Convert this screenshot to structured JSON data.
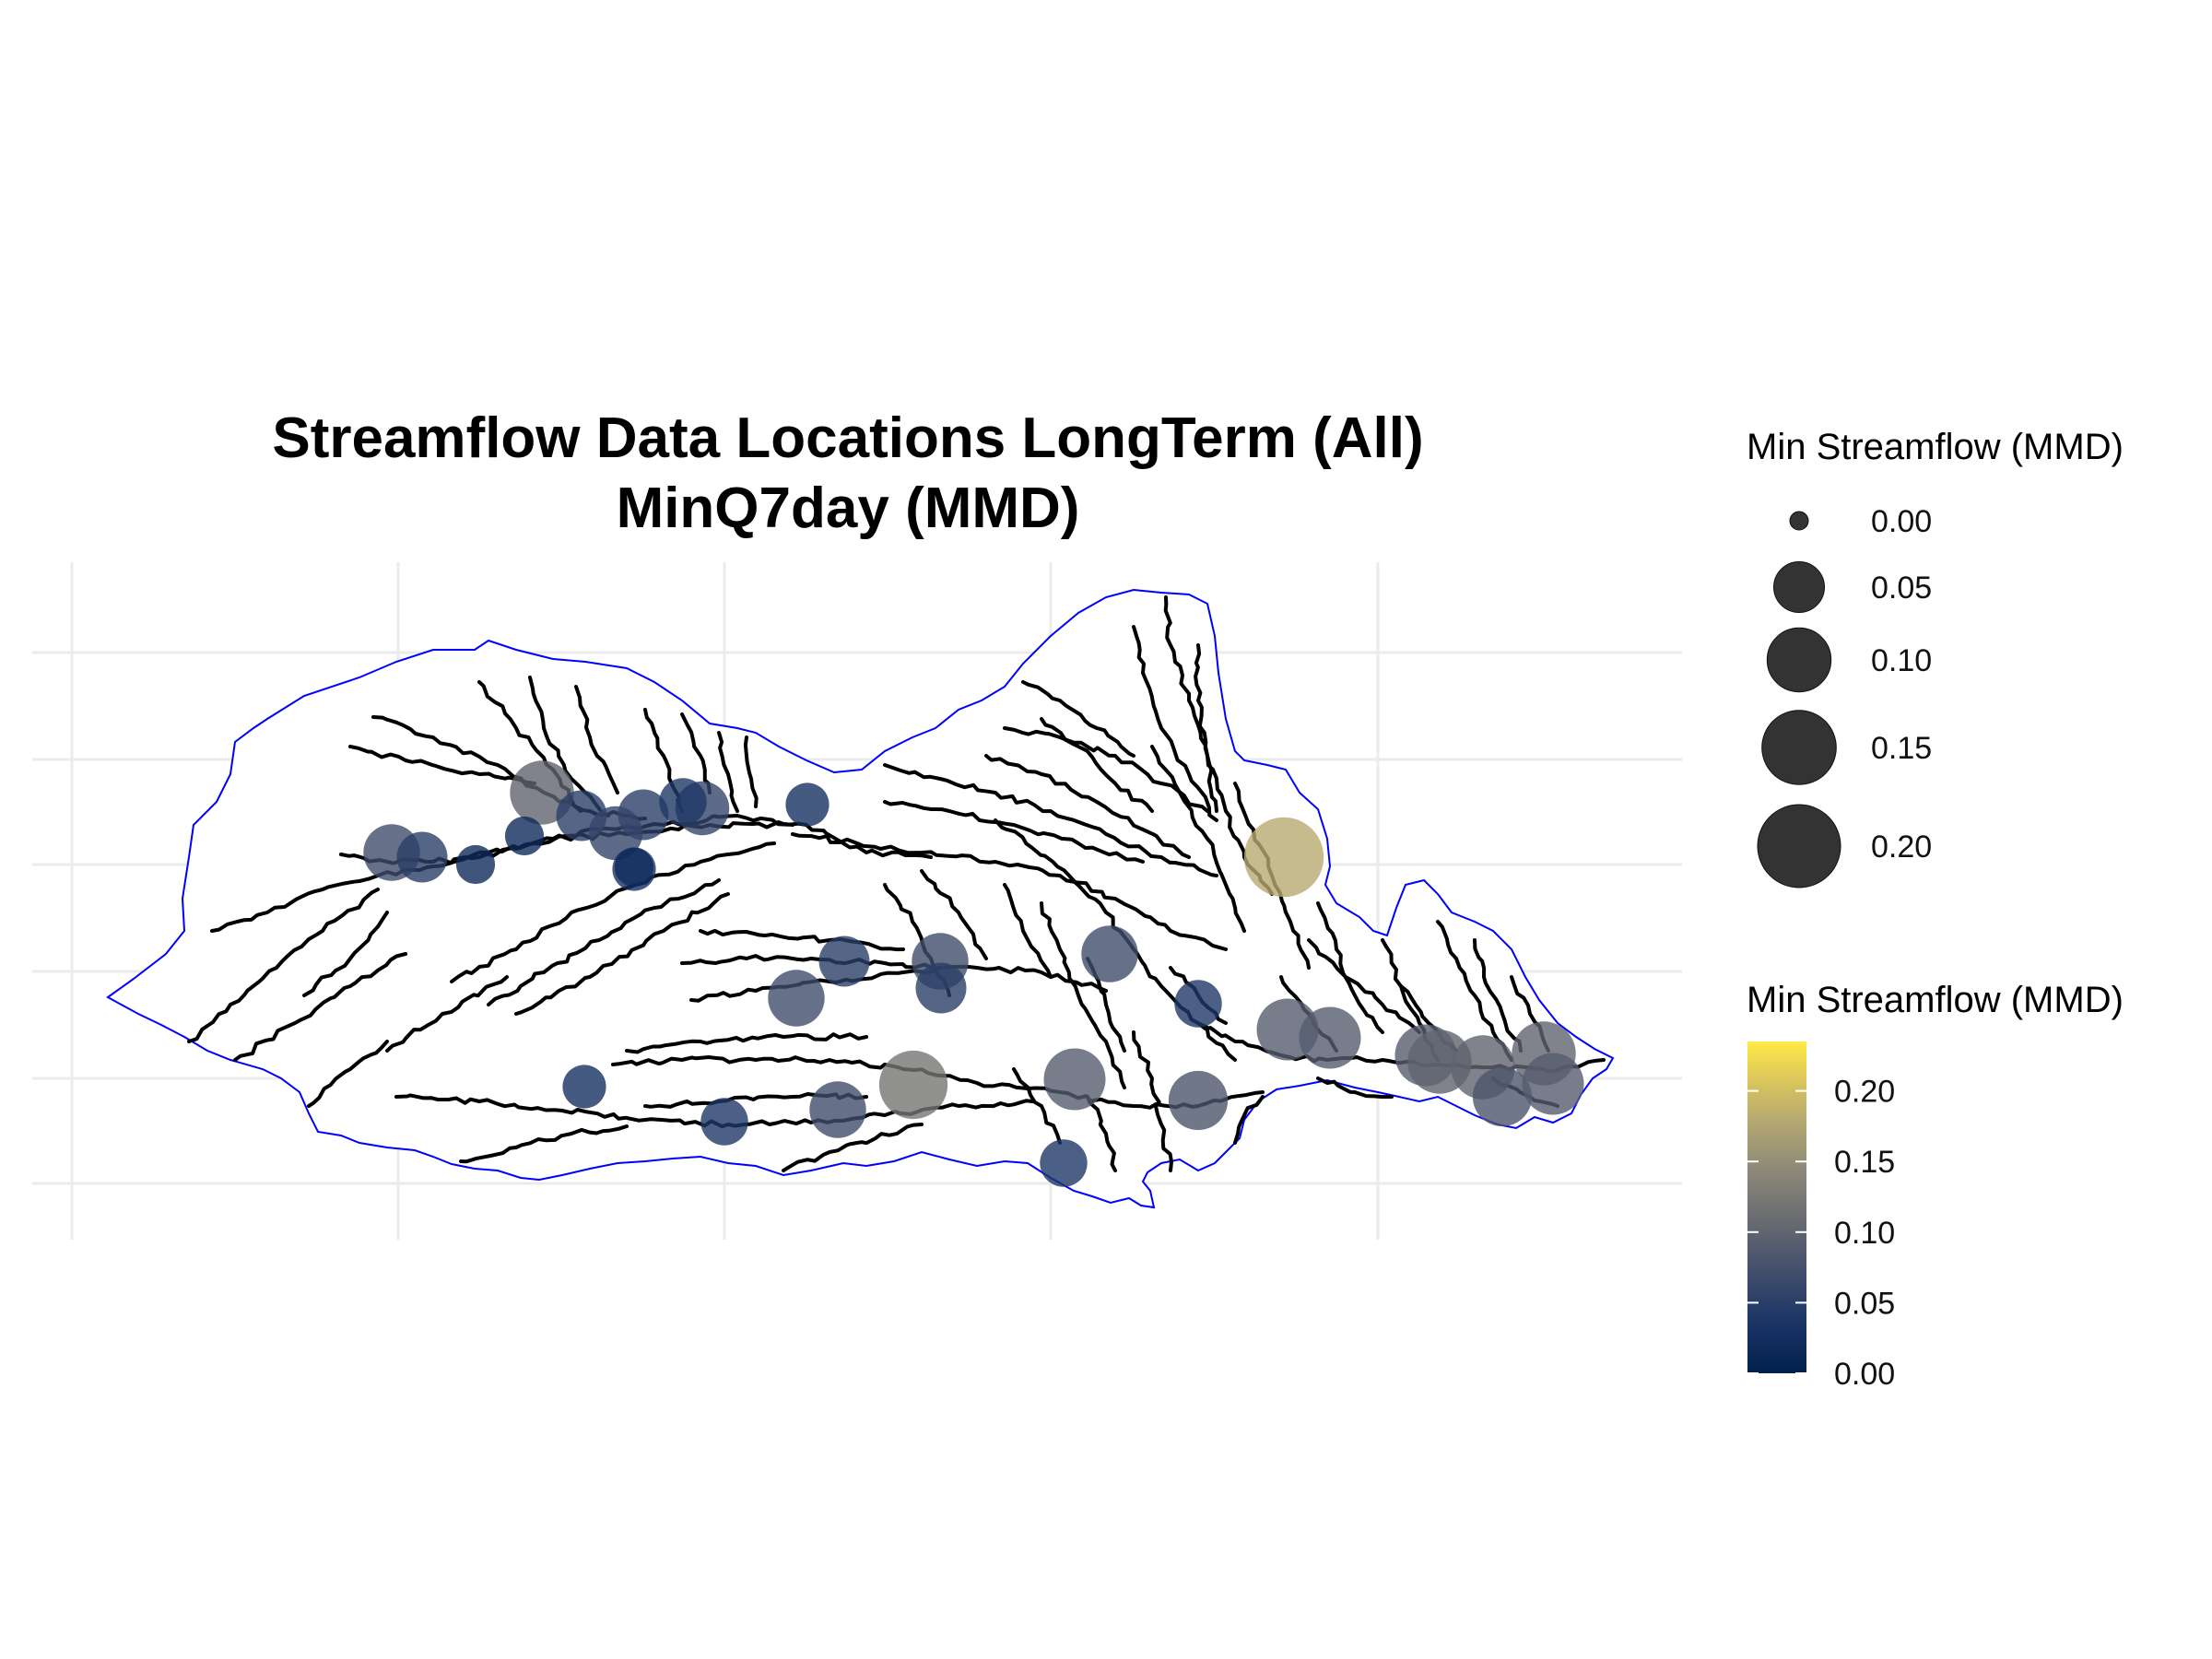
{
  "title": {
    "line1": "Streamflow Data Locations LongTerm (All)",
    "line2": "MinQ7day (MMD)"
  },
  "legend": {
    "size_title": "Min Streamflow (MMD)",
    "size_breaks": [
      {
        "value": 0.0,
        "label": "0.00"
      },
      {
        "value": 0.05,
        "label": "0.05"
      },
      {
        "value": 0.1,
        "label": "0.10"
      },
      {
        "value": 0.15,
        "label": "0.15"
      },
      {
        "value": 0.2,
        "label": "0.20"
      }
    ],
    "color_title": "Min Streamflow (MMD)",
    "color_breaks": [
      {
        "value": 0.2,
        "label": "0.20"
      },
      {
        "value": 0.15,
        "label": "0.15"
      },
      {
        "value": 0.1,
        "label": "0.10"
      },
      {
        "value": 0.05,
        "label": "0.05"
      },
      {
        "value": 0.0,
        "label": "0.00"
      }
    ]
  },
  "colors": {
    "boundary": "#0000ff",
    "streams": "#000000",
    "gridlines": "#ebebeb",
    "point_dark": "#00204d",
    "point_mid": "#7c7b78",
    "point_light": "#ffea46",
    "size_legend_point": "#333333"
  },
  "color_scale": {
    "min": 0.0,
    "max": 0.235,
    "name": "cividis"
  },
  "stations": [
    {
      "id": 1,
      "value": 0.1
    },
    {
      "id": 2,
      "value": 0.05
    },
    {
      "id": 3,
      "value": 0.05
    },
    {
      "id": 4,
      "value": 0.02
    },
    {
      "id": 5,
      "value": 0.06
    },
    {
      "id": 6,
      "value": 0.06
    },
    {
      "id": 7,
      "value": 0.07
    },
    {
      "id": 8,
      "value": 0.05
    },
    {
      "id": 9,
      "value": 0.02
    },
    {
      "id": 10,
      "value": 0.03
    },
    {
      "id": 11,
      "value": 0.03
    },
    {
      "id": 12,
      "value": 0.04
    },
    {
      "id": 13,
      "value": 0.18
    },
    {
      "id": 14,
      "value": 0.07
    },
    {
      "id": 15,
      "value": 0.08
    },
    {
      "id": 16,
      "value": 0.07
    },
    {
      "id": 17,
      "value": 0.05
    },
    {
      "id": 18,
      "value": 0.04
    },
    {
      "id": 19,
      "value": 0.05
    },
    {
      "id": 20,
      "value": 0.07
    },
    {
      "id": 21,
      "value": 0.09
    },
    {
      "id": 22,
      "value": 0.09
    },
    {
      "id": 23,
      "value": 0.04
    },
    {
      "id": 24,
      "value": 0.09
    },
    {
      "id": 25,
      "value": 0.09
    },
    {
      "id": 26,
      "value": 0.1
    },
    {
      "id": 27,
      "value": 0.1
    },
    {
      "id": 28,
      "value": 0.1
    },
    {
      "id": 29,
      "value": 0.08
    },
    {
      "id": 30,
      "value": 0.09
    },
    {
      "id": 31,
      "value": 0.12
    },
    {
      "id": 32,
      "value": 0.07
    },
    {
      "id": 33,
      "value": 0.03
    },
    {
      "id": 34,
      "value": 0.02
    },
    {
      "id": 35,
      "value": 0.04
    }
  ]
}
